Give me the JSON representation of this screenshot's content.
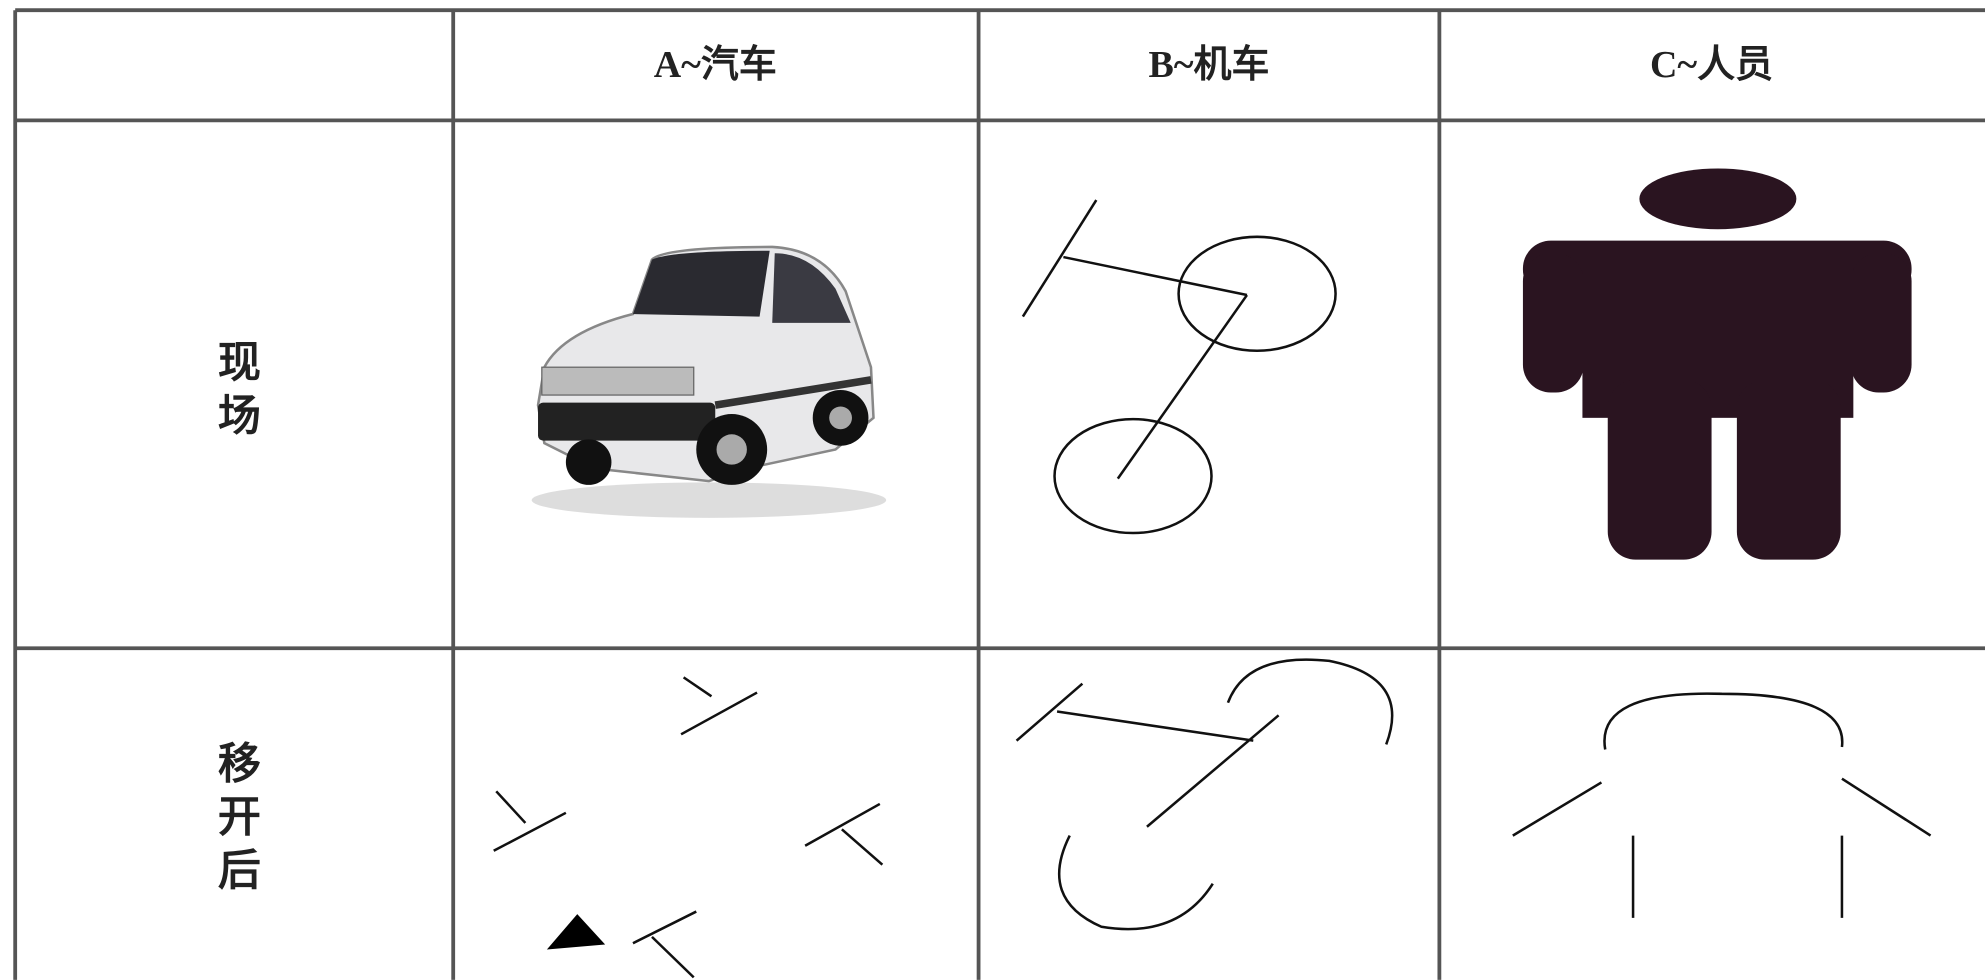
{
  "table": {
    "header": [
      "A~汽车",
      "B~机车",
      "C~人员"
    ],
    "row_labels": [
      "现场",
      "移开后"
    ]
  }
}
